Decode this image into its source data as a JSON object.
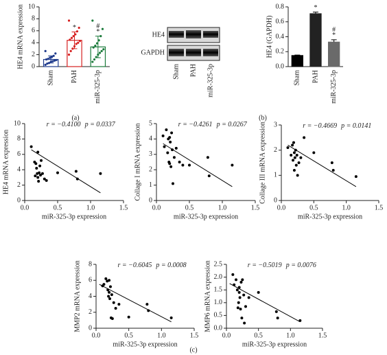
{
  "panels": [
    "(a)",
    "(b)",
    "(c)"
  ],
  "blot": {
    "rows": [
      "HE4",
      "GAPDH"
    ],
    "lanes": [
      "Sham",
      "PAH",
      "miR-325-3p"
    ]
  },
  "chart_data": [
    {
      "type": "bar",
      "ylabel": "HE4 mRNA expression",
      "categories": [
        "Sham",
        "PAH",
        "miR-325-3p"
      ],
      "values": [
        1.2,
        4.4,
        3.3
      ],
      "errors": [
        0.6,
        1.4,
        1.8
      ],
      "colors": [
        "#1f3b8c",
        "#d62020",
        "#1a7a3a"
      ],
      "bar_style": "outline",
      "points": [
        [
          0.3,
          0.5,
          0.6,
          0.8,
          0.9,
          1.0,
          1.1,
          1.2,
          1.3,
          1.5,
          1.6,
          1.8,
          2.2,
          2.6
        ],
        [
          2.0,
          2.6,
          3.0,
          3.4,
          3.8,
          4.0,
          4.3,
          4.5,
          4.8,
          5.1,
          5.4,
          5.9,
          6.5,
          7.7
        ],
        [
          0.8,
          1.2,
          1.6,
          2.0,
          2.3,
          2.6,
          2.9,
          3.2,
          3.5,
          3.9,
          4.4,
          5.1,
          6.3,
          7.7
        ]
      ],
      "annotations": [
        null,
        [
          "*"
        ],
        [
          "#",
          "*"
        ]
      ],
      "ylim": [
        0,
        10
      ],
      "yticks": [
        0,
        2,
        4,
        6,
        8,
        10
      ]
    },
    {
      "type": "bar",
      "ylabel": "HE4 (GAPDH)",
      "categories": [
        "Sham",
        "PAH",
        "miR-325-3p"
      ],
      "values": [
        0.15,
        0.71,
        0.33
      ],
      "errors": [
        0.005,
        0.02,
        0.03
      ],
      "colors": [
        "#000000",
        "#222222",
        "#6a6a6a"
      ],
      "bar_style": "filled",
      "annotations": [
        null,
        [
          "*"
        ],
        [
          "#",
          "*"
        ]
      ],
      "ylim": [
        0,
        0.8
      ],
      "yticks": [
        {
          "value": 0,
          "label": "0.0"
        },
        0.2,
        0.4,
        0.6,
        0.8
      ]
    },
    {
      "type": "scatter",
      "ylabel": "HE4 mRNA expression",
      "xlabel": "miR-325-3p expression",
      "r": "r = −0.4100",
      "p": "p = 0.0337",
      "x": [
        0.1,
        0.15,
        0.17,
        0.18,
        0.19,
        0.2,
        0.2,
        0.21,
        0.22,
        0.23,
        0.24,
        0.25,
        0.27,
        0.3,
        0.33,
        0.5,
        0.78,
        0.8,
        1.15,
        0.16
      ],
      "y": [
        7.0,
        5.0,
        4.8,
        4.2,
        3.5,
        6.3,
        3.0,
        2.5,
        3.6,
        4.5,
        3.3,
        5.2,
        3.5,
        2.8,
        2.6,
        3.6,
        3.8,
        2.8,
        3.5,
        3.2
      ],
      "fit": {
        "x": [
          0.1,
          1.15
        ],
        "y": [
          6.6,
          1.0
        ]
      },
      "xlim": [
        0,
        1.5
      ],
      "xticks": [
        {
          "value": 0,
          "label": "0.0"
        },
        0.5,
        {
          "value": 1,
          "label": "1.0"
        },
        1.5
      ],
      "ylim": [
        0,
        10
      ],
      "yticks": [
        0,
        2,
        4,
        6,
        8,
        10
      ]
    },
    {
      "type": "scatter",
      "ylabel": "Collage I mRNA expression",
      "xlabel": "miR-325-3p expression",
      "r": "r = −0.4261",
      "p": "p = 0.0267",
      "x": [
        0.1,
        0.12,
        0.15,
        0.17,
        0.18,
        0.2,
        0.2,
        0.21,
        0.22,
        0.23,
        0.24,
        0.25,
        0.27,
        0.3,
        0.35,
        0.4,
        0.5,
        0.78,
        0.8,
        1.15,
        0.19
      ],
      "y": [
        4.2,
        3.5,
        4.6,
        3.1,
        4.0,
        4.1,
        2.4,
        3.8,
        2.2,
        4.4,
        3.3,
        1.1,
        2.8,
        3.4,
        2.5,
        2.3,
        2.3,
        2.8,
        1.6,
        2.3,
        2.5
      ],
      "fit": {
        "x": [
          0.1,
          1.15
        ],
        "y": [
          3.7,
          0.9
        ]
      },
      "xlim": [
        0,
        1.5
      ],
      "xticks": [
        {
          "value": 0,
          "label": "0.0"
        },
        0.5,
        {
          "value": 1,
          "label": "1.0"
        },
        1.5
      ],
      "ylim": [
        0,
        5
      ],
      "yticks": [
        0,
        1,
        2,
        3,
        4,
        5
      ]
    },
    {
      "type": "scatter",
      "ylabel": "Collage III mRNA expression",
      "xlabel": "miR-325-3p expression",
      "r": "r = −0.4669",
      "p": "p = 0.0141",
      "x": [
        0.1,
        0.15,
        0.17,
        0.18,
        0.2,
        0.2,
        0.21,
        0.22,
        0.23,
        0.24,
        0.25,
        0.27,
        0.3,
        0.35,
        0.5,
        0.78,
        0.8,
        1.15,
        0.19
      ],
      "y": [
        2.1,
        1.8,
        2.2,
        1.6,
        1.9,
        1.2,
        1.7,
        2.0,
        1.4,
        1.8,
        1.0,
        1.5,
        1.7,
        2.5,
        1.9,
        1.5,
        1.2,
        0.95,
        2.3
      ],
      "fit": {
        "x": [
          0.1,
          1.15
        ],
        "y": [
          2.2,
          0.55
        ]
      },
      "xlim": [
        0,
        1.5
      ],
      "xticks": [
        {
          "value": 0,
          "label": "0.0"
        },
        0.5,
        {
          "value": 1,
          "label": "1.0"
        },
        1.5
      ],
      "ylim": [
        0,
        3
      ],
      "yticks": [
        0,
        1,
        2,
        3
      ]
    },
    {
      "type": "scatter",
      "ylabel": "MMP2 mRNA expression",
      "xlabel": "miR-325-3p expression",
      "r": "r = −0.6045",
      "p": "p = 0.0008",
      "x": [
        0.1,
        0.12,
        0.15,
        0.17,
        0.18,
        0.2,
        0.2,
        0.21,
        0.22,
        0.23,
        0.24,
        0.25,
        0.27,
        0.3,
        0.35,
        0.5,
        0.78,
        0.8,
        1.15,
        0.19
      ],
      "y": [
        5.3,
        5.5,
        6.2,
        5.9,
        4.8,
        6.0,
        4.5,
        3.7,
        5.2,
        1.3,
        4.2,
        1.2,
        3.2,
        2.5,
        3.0,
        1.4,
        3.0,
        2.2,
        1.3,
        4.0
      ],
      "fit": {
        "x": [
          0.05,
          1.15
        ],
        "y": [
          5.5,
          0.8
        ]
      },
      "xlim": [
        0,
        1.5
      ],
      "xticks": [
        {
          "value": 0,
          "label": "0.0"
        },
        0.5,
        {
          "value": 1,
          "label": "1.0"
        },
        1.5
      ],
      "ylim": [
        0,
        8
      ],
      "yticks": [
        0,
        2,
        4,
        6,
        8
      ]
    },
    {
      "type": "scatter",
      "ylabel": "MMP6 mRNA expression",
      "xlabel": "miR-325-3p expression",
      "r": "r = −0.5019",
      "p": "p = 0.0076",
      "x": [
        0.1,
        0.12,
        0.15,
        0.17,
        0.18,
        0.2,
        0.2,
        0.21,
        0.22,
        0.23,
        0.24,
        0.25,
        0.27,
        0.3,
        0.35,
        0.5,
        0.78,
        0.8,
        1.15,
        0.19,
        0.28
      ],
      "y": [
        2.1,
        1.7,
        1.9,
        1.5,
        0.8,
        1.6,
        1.4,
        1.2,
        0.75,
        1.8,
        0.4,
        1.9,
        1.3,
        0.85,
        1.2,
        1.4,
        0.65,
        0.4,
        0.3,
        1.0,
        0.2
      ],
      "fit": {
        "x": [
          0.05,
          1.15
        ],
        "y": [
          1.75,
          0.25
        ]
      },
      "xlim": [
        0,
        1.5
      ],
      "xticks": [
        {
          "value": 0,
          "label": "0.0"
        },
        0.5,
        {
          "value": 1,
          "label": "1.0"
        },
        1.5
      ],
      "ylim": [
        0,
        2.5
      ],
      "yticks": [
        {
          "value": 0,
          "label": "0.0"
        },
        0.5,
        {
          "value": 1,
          "label": "1.0"
        },
        1.5,
        {
          "value": 2,
          "label": "2.0"
        },
        2.5
      ]
    }
  ]
}
